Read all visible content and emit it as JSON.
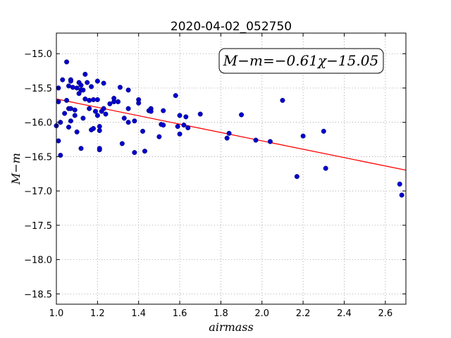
{
  "chart_data": {
    "type": "scatter",
    "title": "2020-04-02_052750",
    "xlabel": "airmass",
    "ylabel": "M−m",
    "xlim": [
      1.0,
      2.7
    ],
    "ylim": [
      -18.65,
      -14.7
    ],
    "y_inverted": true,
    "grid": true,
    "x_ticks": [
      "1.0",
      "1.2",
      "1.4",
      "1.6",
      "1.8",
      "2.0",
      "2.2",
      "2.4",
      "2.6"
    ],
    "x_tick_values": [
      1.0,
      1.2,
      1.4,
      1.6,
      1.8,
      2.0,
      2.2,
      2.4,
      2.6
    ],
    "y_ticks": [
      "−15.0",
      "−15.5",
      "−16.0",
      "−16.5",
      "−17.0",
      "−17.5",
      "−18.0",
      "−18.5"
    ],
    "y_tick_values": [
      -15.0,
      -15.5,
      -16.0,
      -16.5,
      -17.0,
      -17.5,
      -18.0,
      -18.5
    ],
    "annotation": "M−m=−0.61χ−15.05",
    "fit": {
      "slope": -0.61,
      "intercept": -15.05
    },
    "colors": {
      "points": "#0000cc",
      "fit_line": "#ff0000",
      "grid": "#999999"
    },
    "points": [
      [
        1.0,
        -16.05
      ],
      [
        1.01,
        -15.5
      ],
      [
        1.01,
        -16.27
      ],
      [
        1.01,
        -15.7
      ],
      [
        1.02,
        -16.0
      ],
      [
        1.02,
        -16.48
      ],
      [
        1.03,
        -15.38
      ],
      [
        1.04,
        -15.87
      ],
      [
        1.05,
        -15.12
      ],
      [
        1.05,
        -15.68
      ],
      [
        1.06,
        -15.47
      ],
      [
        1.06,
        -15.8
      ],
      [
        1.06,
        -16.07
      ],
      [
        1.07,
        -15.38
      ],
      [
        1.07,
        -15.4
      ],
      [
        1.07,
        -15.8
      ],
      [
        1.07,
        -15.98
      ],
      [
        1.08,
        -15.49
      ],
      [
        1.09,
        -15.9
      ],
      [
        1.09,
        -15.82
      ],
      [
        1.1,
        -15.5
      ],
      [
        1.1,
        -16.14
      ],
      [
        1.11,
        -15.42
      ],
      [
        1.11,
        -15.58
      ],
      [
        1.12,
        -15.53
      ],
      [
        1.12,
        -15.46
      ],
      [
        1.12,
        -16.38
      ],
      [
        1.13,
        -15.94
      ],
      [
        1.13,
        -15.53
      ],
      [
        1.14,
        -15.3
      ],
      [
        1.14,
        -15.66
      ],
      [
        1.15,
        -15.42
      ],
      [
        1.16,
        -15.68
      ],
      [
        1.16,
        -15.8
      ],
      [
        1.17,
        -15.48
      ],
      [
        1.17,
        -16.11
      ],
      [
        1.18,
        -16.09
      ],
      [
        1.18,
        -15.67
      ],
      [
        1.19,
        -15.84
      ],
      [
        1.2,
        -15.67
      ],
      [
        1.2,
        -15.9
      ],
      [
        1.2,
        -15.4
      ],
      [
        1.21,
        -16.06
      ],
      [
        1.21,
        -16.12
      ],
      [
        1.21,
        -16.4
      ],
      [
        1.21,
        -16.38
      ],
      [
        1.22,
        -15.84
      ],
      [
        1.23,
        -15.43
      ],
      [
        1.23,
        -15.8
      ],
      [
        1.24,
        -15.88
      ],
      [
        1.26,
        -15.73
      ],
      [
        1.28,
        -15.7
      ],
      [
        1.28,
        -15.65
      ],
      [
        1.3,
        -15.7
      ],
      [
        1.31,
        -15.49
      ],
      [
        1.32,
        -16.31
      ],
      [
        1.33,
        -15.94
      ],
      [
        1.35,
        -16.0
      ],
      [
        1.35,
        -15.8
      ],
      [
        1.35,
        -15.53
      ],
      [
        1.38,
        -16.44
      ],
      [
        1.38,
        -15.98
      ],
      [
        1.4,
        -15.67
      ],
      [
        1.4,
        -15.72
      ],
      [
        1.42,
        -16.13
      ],
      [
        1.43,
        -16.42
      ],
      [
        1.45,
        -15.83
      ],
      [
        1.46,
        -15.8
      ],
      [
        1.46,
        -15.84
      ],
      [
        1.5,
        -16.21
      ],
      [
        1.51,
        -16.03
      ],
      [
        1.52,
        -15.83
      ],
      [
        1.52,
        -16.04
      ],
      [
        1.58,
        -15.61
      ],
      [
        1.59,
        -16.06
      ],
      [
        1.6,
        -16.17
      ],
      [
        1.6,
        -15.9
      ],
      [
        1.62,
        -16.04
      ],
      [
        1.63,
        -15.92
      ],
      [
        1.64,
        -16.08
      ],
      [
        1.7,
        -15.88
      ],
      [
        1.83,
        -16.23
      ],
      [
        1.84,
        -16.16
      ],
      [
        1.9,
        -15.89
      ],
      [
        1.97,
        -16.26
      ],
      [
        2.04,
        -16.28
      ],
      [
        2.1,
        -15.68
      ],
      [
        2.17,
        -16.79
      ],
      [
        2.2,
        -16.2
      ],
      [
        2.3,
        -16.13
      ],
      [
        2.31,
        -16.67
      ],
      [
        2.67,
        -16.9
      ],
      [
        2.68,
        -17.06
      ]
    ]
  }
}
